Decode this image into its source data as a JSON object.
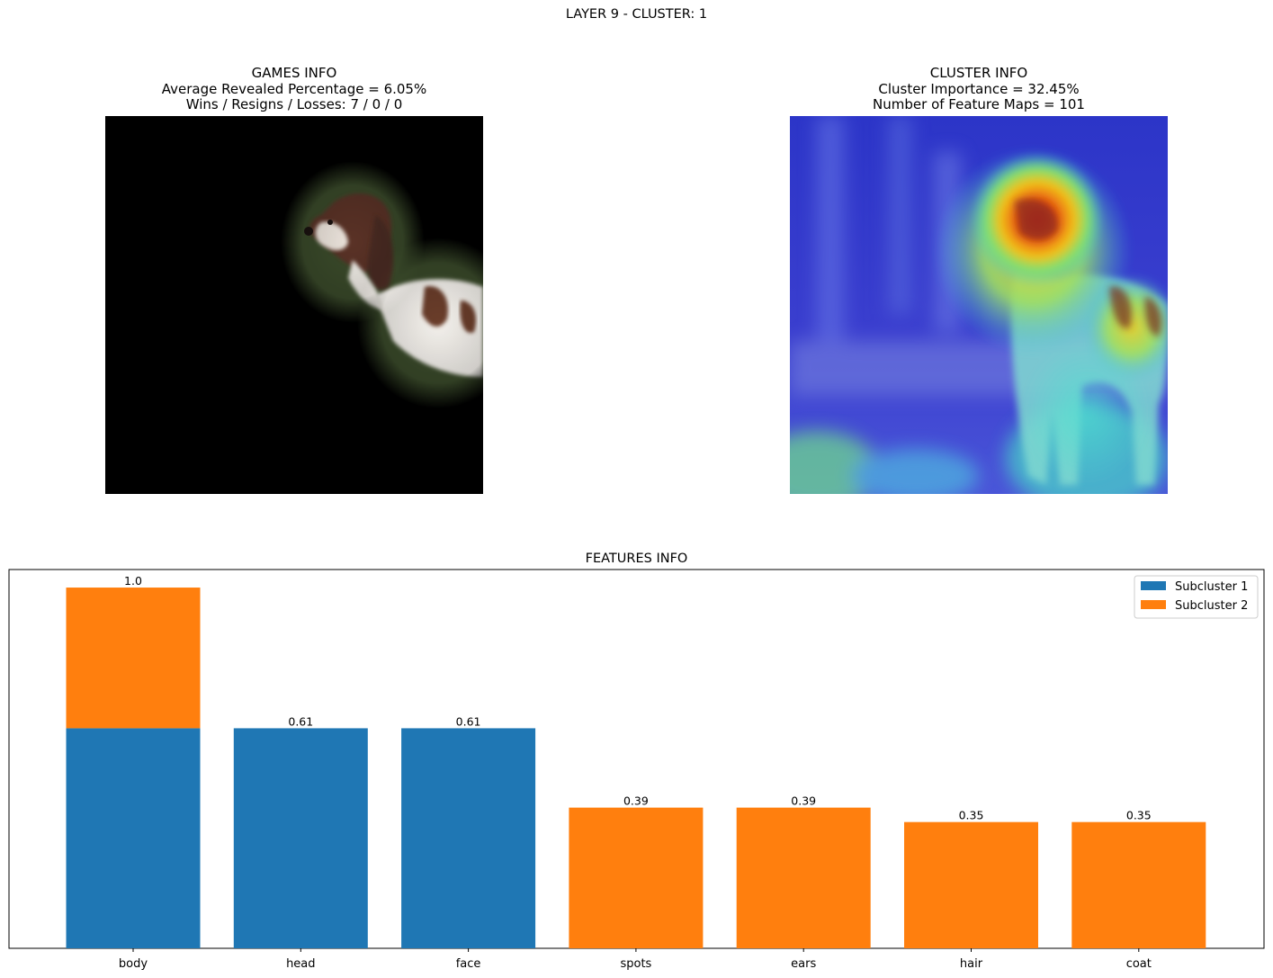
{
  "figure": {
    "suptitle": "LAYER 9 - CLUSTER: 1"
  },
  "games_info": {
    "title": "GAMES INFO",
    "line1": "Average Revealed Percentage = 6.05%",
    "line2": "Wins / Resigns / Losses: 7 / 0 / 0"
  },
  "cluster_info": {
    "title": "CLUSTER INFO",
    "line1": "Cluster Importance = 32.45%",
    "line2": "Number of Feature Maps = 101"
  },
  "chart_data": {
    "type": "bar",
    "stacked": true,
    "title": "FEATURES INFO",
    "xlabel": "",
    "ylabel": "",
    "categories": [
      "body",
      "head",
      "face",
      "spots",
      "ears",
      "hair",
      "coat"
    ],
    "series": [
      {
        "name": "Subcluster 1",
        "color": "#1f77b4",
        "values": [
          0.61,
          0.61,
          0.61,
          0,
          0,
          0,
          0
        ]
      },
      {
        "name": "Subcluster 2",
        "color": "#ff7f0e",
        "values": [
          0.39,
          0,
          0,
          0.39,
          0.39,
          0.35,
          0.35
        ]
      }
    ],
    "bar_labels": [
      "1.0",
      "0.61",
      "0.61",
      "0.39",
      "0.39",
      "0.35",
      "0.35"
    ],
    "ylim": [
      0,
      1.05
    ],
    "yticks_visible": false,
    "grid": false,
    "legend_position": "top-right"
  }
}
